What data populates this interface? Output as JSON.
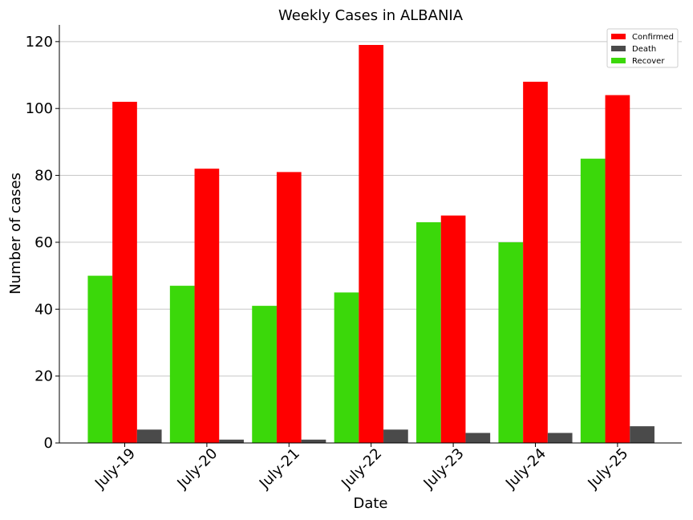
{
  "chart_data": {
    "type": "bar",
    "title": "Weekly Cases in ALBANIA",
    "xlabel": "Date",
    "ylabel": "Number of cases",
    "categories": [
      "July-19",
      "July-20",
      "July-21",
      "July-22",
      "July-23",
      "July-24",
      "July-25"
    ],
    "series": [
      {
        "name": "Recover",
        "color": "#3bd80a",
        "values": [
          50,
          47,
          41,
          45,
          66,
          60,
          85
        ]
      },
      {
        "name": "Confirmed",
        "color": "#ff0000",
        "values": [
          102,
          82,
          81,
          119,
          68,
          108,
          104
        ]
      },
      {
        "name": "Death",
        "color": "#4a4a4a",
        "values": [
          4,
          1,
          1,
          4,
          3,
          3,
          5
        ]
      }
    ],
    "legend_order": [
      "Confirmed",
      "Death",
      "Recover"
    ],
    "ylim": [
      0,
      125
    ],
    "yticks": [
      0,
      20,
      40,
      60,
      80,
      100,
      120
    ],
    "grid": "horizontal",
    "legend_position": "top-right"
  }
}
